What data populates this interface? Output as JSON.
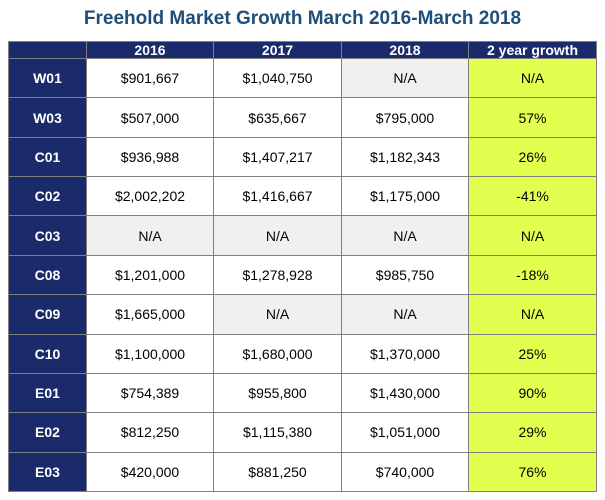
{
  "chart_data": {
    "type": "table",
    "title": "Freehold Market Growth March 2016-March 2018",
    "columns": [
      "",
      "2016",
      "2017",
      "2018",
      "2 year growth"
    ],
    "rows": [
      {
        "label": "W01",
        "cells": [
          "$901,667",
          "$1,040,750",
          "N/A",
          "N/A"
        ]
      },
      {
        "label": "W03",
        "cells": [
          "$507,000",
          "$635,667",
          "$795,000",
          "57%"
        ]
      },
      {
        "label": "C01",
        "cells": [
          "$936,988",
          "$1,407,217",
          "$1,182,343",
          "26%"
        ]
      },
      {
        "label": "C02",
        "cells": [
          "$2,002,202",
          "$1,416,667",
          "$1,175,000",
          "-41%"
        ]
      },
      {
        "label": "C03",
        "cells": [
          "N/A",
          "N/A",
          "N/A",
          "N/A"
        ]
      },
      {
        "label": "C08",
        "cells": [
          "$1,201,000",
          "$1,278,928",
          "$985,750",
          "-18%"
        ]
      },
      {
        "label": "C09",
        "cells": [
          "$1,665,000",
          "N/A",
          "N/A",
          "N/A"
        ]
      },
      {
        "label": "C10",
        "cells": [
          "$1,100,000",
          "$1,680,000",
          "$1,370,000",
          "25%"
        ]
      },
      {
        "label": "E01",
        "cells": [
          "$754,389",
          "$955,800",
          "$1,430,000",
          "90%"
        ]
      },
      {
        "label": "E02",
        "cells": [
          "$812,250",
          "$1,115,380",
          "$1,051,000",
          "29%"
        ]
      },
      {
        "label": "E03",
        "cells": [
          "$420,000",
          "$881,250",
          "$740,000",
          "76%"
        ]
      }
    ]
  },
  "colors": {
    "title": "#1f4e79",
    "header_bg": "#1b2a6b",
    "na_bg": "#f0f0f0",
    "growth_bg": "#e2ff4f"
  }
}
